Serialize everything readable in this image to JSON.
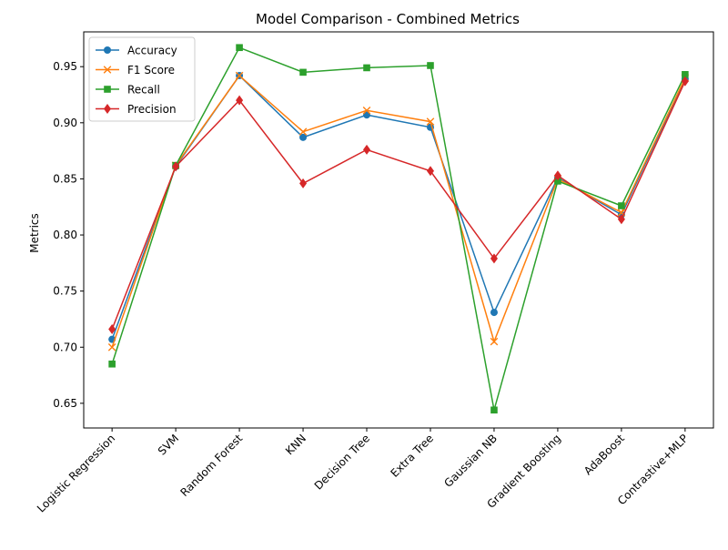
{
  "chart_data": {
    "type": "line",
    "title": "Model Comparison - Combined Metrics",
    "xlabel": "",
    "ylabel": "Metrics",
    "categories": [
      "Logistic Regression",
      "SVM",
      "Random Forest",
      "KNN",
      "Decision Tree",
      "Extra Tree",
      "Gaussian NB",
      "Gradient Boosting",
      "AdaBoost",
      "Contrastive+MLP"
    ],
    "ylim": [
      0.628,
      0.981
    ],
    "yticks": [
      0.65,
      0.7,
      0.75,
      0.8,
      0.85,
      0.9,
      0.95
    ],
    "ytick_labels": [
      "0.65",
      "0.70",
      "0.75",
      "0.80",
      "0.85",
      "0.90",
      "0.95"
    ],
    "grid": false,
    "legend_position": "top-left",
    "series": [
      {
        "name": "Accuracy",
        "color": "#1f77b4",
        "marker": "circle",
        "values": [
          0.707,
          0.861,
          0.942,
          0.887,
          0.907,
          0.896,
          0.731,
          0.851,
          0.818,
          0.939
        ]
      },
      {
        "name": "F1 Score",
        "color": "#ff7f0e",
        "marker": "x",
        "values": [
          0.7,
          0.862,
          0.942,
          0.892,
          0.911,
          0.901,
          0.705,
          0.85,
          0.82,
          0.94
        ]
      },
      {
        "name": "Recall",
        "color": "#2ca02c",
        "marker": "square",
        "values": [
          0.685,
          0.862,
          0.967,
          0.945,
          0.949,
          0.951,
          0.644,
          0.848,
          0.826,
          0.943
        ]
      },
      {
        "name": "Precision",
        "color": "#d62728",
        "marker": "diamond",
        "values": [
          0.716,
          0.861,
          0.92,
          0.846,
          0.876,
          0.857,
          0.779,
          0.853,
          0.814,
          0.937
        ]
      }
    ]
  }
}
